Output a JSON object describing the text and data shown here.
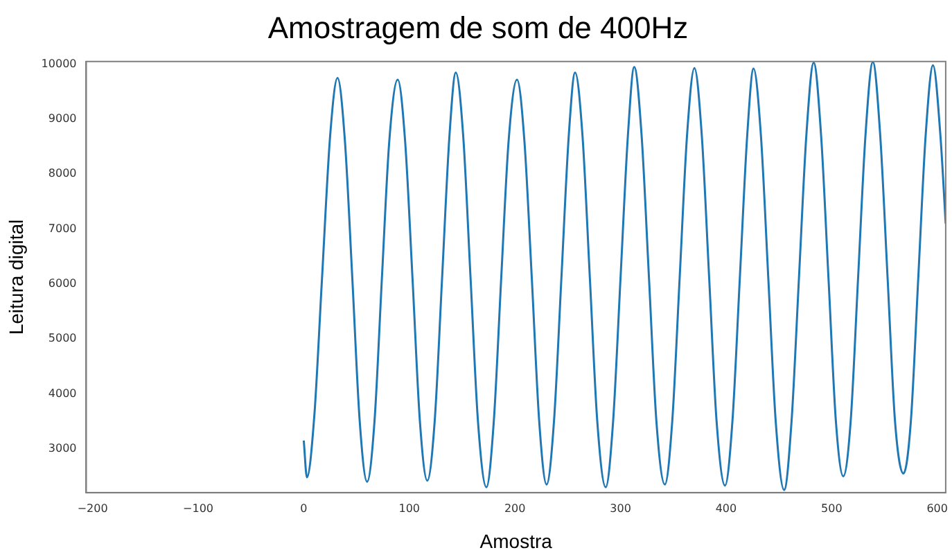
{
  "chart_data": {
    "type": "line",
    "title": "Amostragem de som de 400Hz",
    "xlabel": "Amostra",
    "ylabel": "Leitura digital",
    "x": [
      0,
      3,
      10,
      17,
      25,
      32,
      39,
      46,
      53,
      60,
      67,
      74,
      81,
      89,
      96,
      103,
      110,
      117,
      124,
      131,
      138,
      144,
      151,
      158,
      165,
      173,
      180,
      187,
      194,
      202,
      209,
      216,
      223,
      230,
      237,
      244,
      251,
      257,
      264,
      271,
      278,
      286,
      293,
      300,
      307,
      313,
      320,
      327,
      334,
      342,
      349,
      356,
      363,
      370,
      377,
      384,
      391,
      399,
      406,
      413,
      420,
      426,
      433,
      440,
      447,
      455,
      462,
      469,
      476,
      483,
      490,
      497,
      504,
      511,
      518,
      525,
      532,
      539,
      546,
      553,
      560,
      568,
      575,
      582,
      589,
      596,
      603,
      608
    ],
    "series": [
      {
        "color": "#1f77b4",
        "values": [
          3150,
          2480,
          3600,
          6000,
          8700,
          9750,
          8600,
          6100,
          3500,
          2400,
          3500,
          6100,
          8600,
          9720,
          8600,
          6100,
          3500,
          2420,
          3500,
          6100,
          8700,
          9850,
          8700,
          6100,
          3500,
          2300,
          3500,
          6100,
          8600,
          9720,
          8600,
          6100,
          3500,
          2350,
          3500,
          6100,
          8700,
          9850,
          8700,
          6100,
          3500,
          2300,
          3500,
          6100,
          8700,
          9950,
          8700,
          6100,
          3500,
          2350,
          3500,
          6100,
          8700,
          9930,
          8700,
          6100,
          3500,
          2330,
          3500,
          6100,
          8700,
          9920,
          8700,
          6100,
          3500,
          2250,
          3500,
          6100,
          8700,
          10030,
          8700,
          6100,
          3500,
          2500,
          3500,
          6100,
          8700,
          10040,
          8700,
          6100,
          3500,
          2550,
          3500,
          6100,
          8700,
          9980,
          8700,
          7100
        ]
      }
    ],
    "xlim": [
      -206,
      608
    ],
    "ylim": [
      2200,
      10050
    ],
    "xticks": [
      {
        "value": -200,
        "label": "−200"
      },
      {
        "value": -100,
        "label": "−100"
      },
      0,
      100,
      200,
      300,
      400,
      500,
      600
    ],
    "yticks": [
      3000,
      4000,
      5000,
      6000,
      7000,
      8000,
      9000,
      10000
    ],
    "grid": false,
    "legend": false,
    "marker": "none",
    "line_style": "solid"
  }
}
